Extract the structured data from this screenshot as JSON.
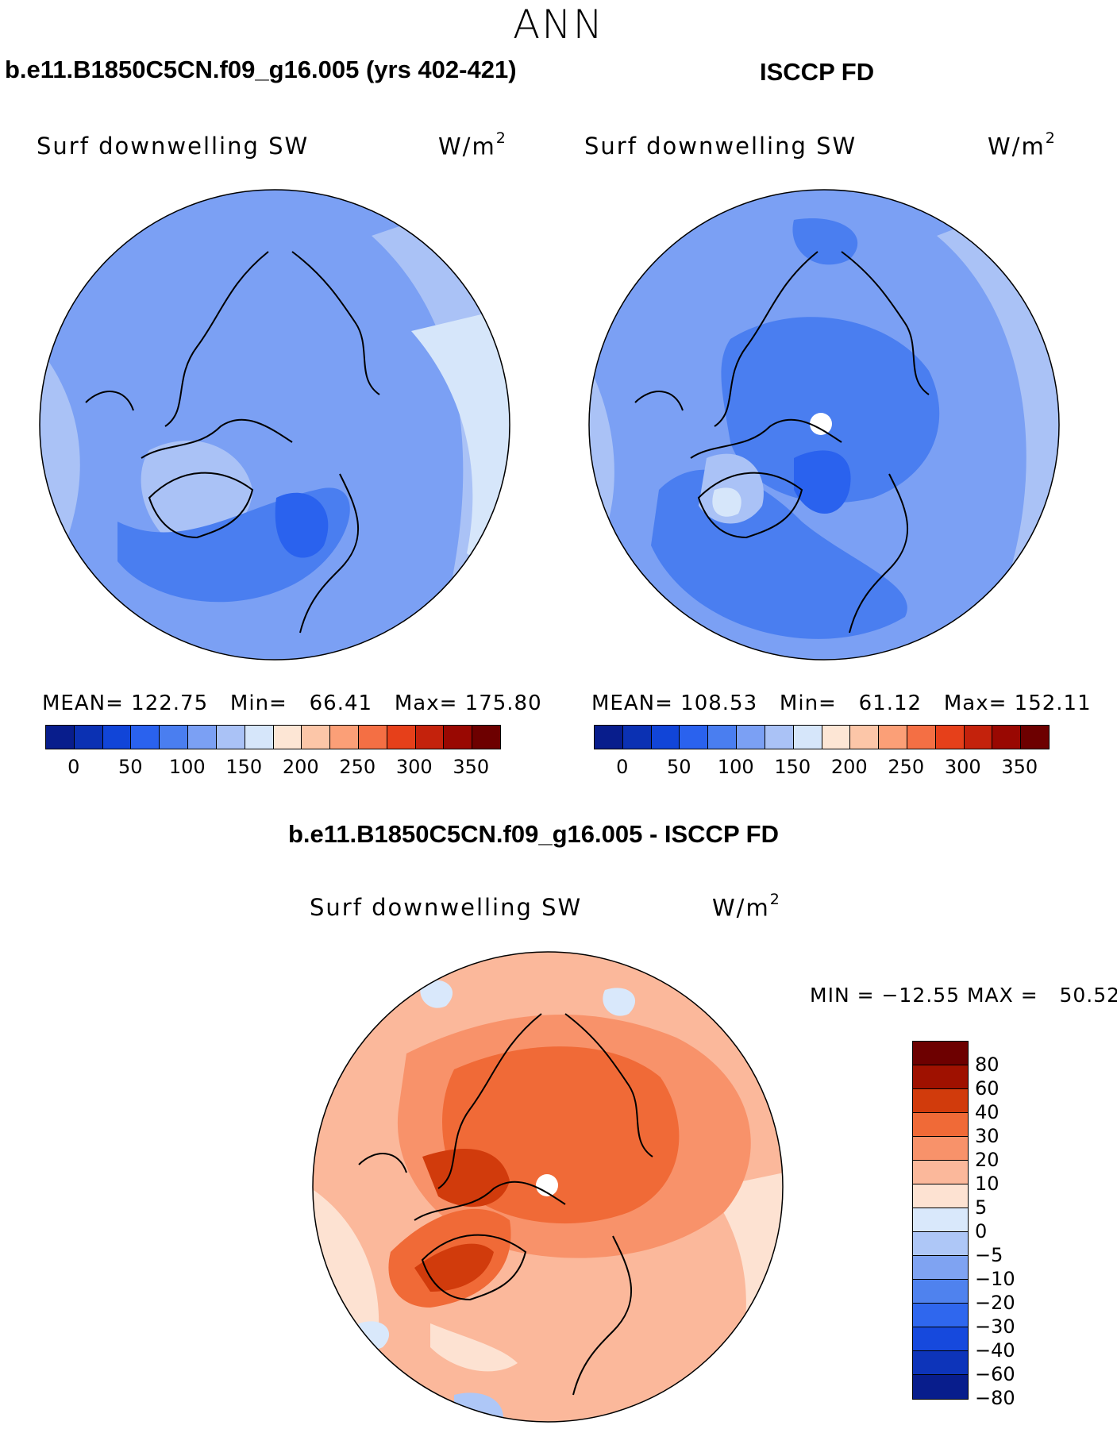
{
  "title": "ANN",
  "panels": [
    {
      "case_title": "b.e11.B1850C5CN.f09_g16.005 (yrs 402-421)",
      "variable": "Surf downwelling SW",
      "units": "W/m",
      "units_sup": "2",
      "stats": "MEAN= 122.75   Min=   66.41   Max= 175.80"
    },
    {
      "case_title": "ISCCP FD",
      "variable": "Surf downwelling SW",
      "units": "W/m",
      "units_sup": "2",
      "stats": "MEAN= 108.53   Min=   61.12   Max= 152.11"
    }
  ],
  "diff_panel": {
    "case_title": "b.e11.B1850C5CN.f09_g16.005 - ISCCP FD",
    "variable": "Surf downwelling SW",
    "units": "W/m",
    "units_sup": "2",
    "stats": "MIN = −12.55 MAX =   50.52"
  },
  "colorbar_abs": {
    "colors": [
      "#081d8c",
      "#0b31b3",
      "#1145d8",
      "#2a62ee",
      "#4a7ef0",
      "#7ba0f4",
      "#aac2f6",
      "#d6e6fa",
      "#fde6d5",
      "#fcc6a8",
      "#fb9f77",
      "#f46f44",
      "#e6401a",
      "#c4220c",
      "#990802",
      "#6d0000"
    ],
    "tick_labels": [
      "0",
      "50",
      "100",
      "150",
      "200",
      "250",
      "300",
      "350"
    ]
  },
  "colorbar_diff": {
    "colors": [
      "#6d0000",
      "#9f1100",
      "#d13b0c",
      "#f06a37",
      "#f8926a",
      "#fbb89b",
      "#fde2d2",
      "#d9e8fb",
      "#aec7f7",
      "#7fa3f2",
      "#4f82ee",
      "#2f67ee",
      "#1649dd",
      "#0d34ba",
      "#081d8c"
    ],
    "tick_labels": [
      "80",
      "60",
      "40",
      "30",
      "20",
      "10",
      "5",
      "0",
      "−5",
      "−10",
      "−20",
      "−30",
      "−40",
      "−60",
      "−80"
    ]
  }
}
